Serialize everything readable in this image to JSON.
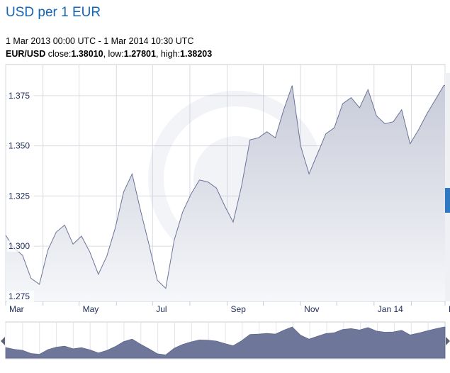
{
  "header": {
    "title": "USD per 1 EUR",
    "date_range": "1 Mar 2013 00:00 UTC - 1 Mar 2014 10:30 UTC",
    "pair": "EUR/USD",
    "close_label": " close:",
    "close_value": "1.38010",
    "low_label": ", low:",
    "low_value": "1.27801",
    "high_label": ", high:",
    "high_value": "1.38203"
  },
  "colors": {
    "title": "#1565b5",
    "line": "#6a7497",
    "area_top": "#c8cbd9",
    "area_bottom": "#f6f7fa",
    "navigator_fill": "#6e7699",
    "grid": "#d9dbe2",
    "accent_bar": "#2f79c2"
  },
  "chart_data": {
    "type": "area",
    "title": "USD per 1 EUR",
    "series": [
      {
        "name": "EUR/USD",
        "x": [
          "2013-03-01",
          "2013-03-08",
          "2013-03-15",
          "2013-03-22",
          "2013-03-29",
          "2013-04-05",
          "2013-04-12",
          "2013-04-19",
          "2013-04-26",
          "2013-05-03",
          "2013-05-10",
          "2013-05-17",
          "2013-05-24",
          "2013-05-31",
          "2013-06-07",
          "2013-06-14",
          "2013-06-21",
          "2013-06-28",
          "2013-07-05",
          "2013-07-12",
          "2013-07-19",
          "2013-07-26",
          "2013-08-02",
          "2013-08-09",
          "2013-08-16",
          "2013-08-23",
          "2013-08-30",
          "2013-09-06",
          "2013-09-13",
          "2013-09-20",
          "2013-09-27",
          "2013-10-04",
          "2013-10-11",
          "2013-10-18",
          "2013-10-25",
          "2013-11-01",
          "2013-11-08",
          "2013-11-15",
          "2013-11-22",
          "2013-11-29",
          "2013-12-06",
          "2013-12-13",
          "2013-12-20",
          "2013-12-27",
          "2014-01-03",
          "2014-01-10",
          "2014-01-17",
          "2014-01-24",
          "2014-01-31",
          "2014-02-07",
          "2014-02-14",
          "2014-02-21",
          "2014-02-28",
          "2014-03-01"
        ],
        "values": [
          1.3055,
          1.299,
          1.2955,
          1.284,
          1.281,
          1.298,
          1.307,
          1.3105,
          1.301,
          1.305,
          1.297,
          1.286,
          1.295,
          1.309,
          1.327,
          1.336,
          1.318,
          1.301,
          1.283,
          1.279,
          1.303,
          1.317,
          1.326,
          1.333,
          1.332,
          1.329,
          1.32,
          1.312,
          1.33,
          1.353,
          1.354,
          1.357,
          1.354,
          1.368,
          1.38,
          1.35,
          1.336,
          1.346,
          1.356,
          1.359,
          1.371,
          1.374,
          1.369,
          1.378,
          1.365,
          1.361,
          1.362,
          1.368,
          1.351,
          1.358,
          1.366,
          1.373,
          1.3801,
          1.3801
        ]
      }
    ],
    "ylim": [
      1.2725,
      1.3905
    ],
    "yticks": [
      "1.275",
      "1.300",
      "1.325",
      "1.350",
      "1.375"
    ],
    "xticks": [
      "Mar",
      "May",
      "Jul",
      "Sep",
      "Nov",
      "Jan 14",
      "M"
    ],
    "xlabel": "",
    "ylabel": "",
    "grid": true,
    "legend": "none"
  }
}
